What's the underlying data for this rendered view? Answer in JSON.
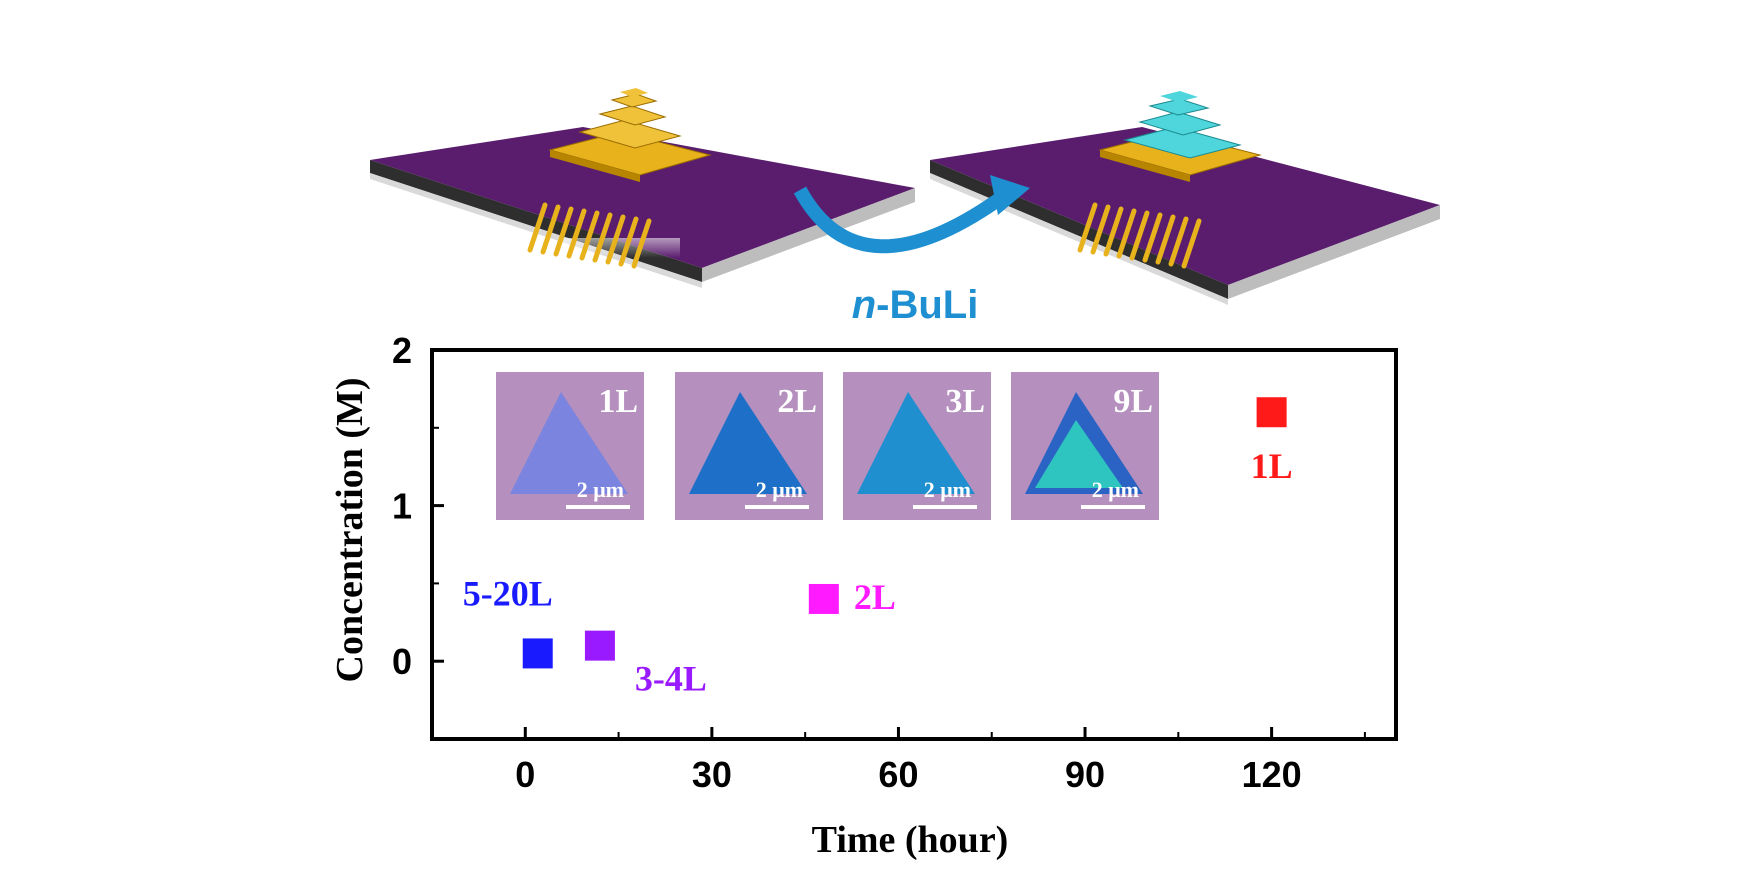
{
  "reagent_label": "n-BuLi",
  "reagent_italic": "n",
  "reagent_rest": "-BuLi",
  "colors": {
    "substrate_top": "#5a1d6e",
    "substrate_side": "#3a3a3a",
    "substrate_bottom": "#c8c8c8",
    "flake_gold": "#e8b21c",
    "flake_cyan": "#4fd6dc",
    "arrow": "#1e8fd0",
    "reagent_text": "#1e8fd0",
    "optical_bg": "#b58fbe"
  },
  "insets": [
    {
      "label": "1L",
      "scale": "2 μm",
      "flake_color": "#7b85e0"
    },
    {
      "label": "2L",
      "scale": "2 μm",
      "flake_color": "#1d6fc8"
    },
    {
      "label": "3L",
      "scale": "2 μm",
      "flake_color": "#1f8fd0"
    },
    {
      "label": "9L",
      "scale": "2 μm",
      "flake_color": "#2a63c4",
      "inner_color": "#2ec5c0"
    }
  ],
  "chart_data": {
    "type": "scatter",
    "xlabel": "Time (hour)",
    "ylabel": "Concentration (M)",
    "xlim": [
      -15,
      140
    ],
    "ylim": [
      -0.5,
      2
    ],
    "xticks": [
      "0",
      "30",
      "60",
      "90",
      "120"
    ],
    "xtick_values": [
      0,
      30,
      60,
      90,
      120
    ],
    "yticks": [
      "0",
      "1",
      "2"
    ],
    "ytick_values": [
      0,
      1,
      2
    ],
    "points": [
      {
        "x": 2,
        "y": 0.05,
        "label": "5-20L",
        "color": "#1a1aff"
      },
      {
        "x": 12,
        "y": 0.1,
        "label": "3-4L",
        "color": "#9a1aff"
      },
      {
        "x": 48,
        "y": 0.4,
        "label": "2L",
        "color": "#ff1aff"
      },
      {
        "x": 120,
        "y": 1.6,
        "label": "1L",
        "color": "#ff1a1a"
      }
    ]
  }
}
